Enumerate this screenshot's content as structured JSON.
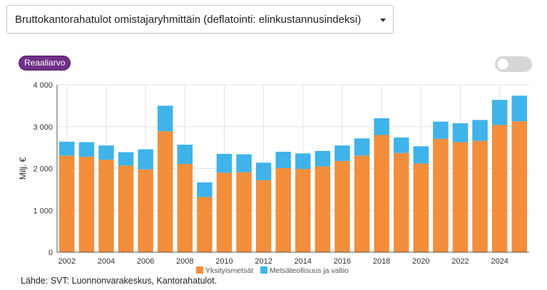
{
  "dropdown": {
    "selected": "Bruttokantorahatulot omistajaryhmittäin (deflatointi: elinkustannusindeksi)"
  },
  "badge": {
    "label": "Reaaliarvo"
  },
  "toggle": {
    "on": false
  },
  "source": "Lähde: SVT: Luonnonvarakeskus, Kantorahatulot.",
  "colors": {
    "series1": "#f28e3c",
    "series2": "#3fb3ea",
    "badge": "#6f2f86"
  },
  "chart_data": {
    "type": "bar",
    "stacked": true,
    "categories": [
      "2002",
      "2003",
      "2004",
      "2005",
      "2006",
      "2007",
      "2008",
      "2009",
      "2010",
      "2011",
      "2012",
      "2013",
      "2014",
      "2015",
      "2016",
      "2017",
      "2018",
      "2019",
      "2020",
      "2021",
      "2022",
      "2023",
      "2024",
      "2025"
    ],
    "x_tick_labels": [
      "2002",
      "2004",
      "2006",
      "2008",
      "2010",
      "2012",
      "2014",
      "2016",
      "2018",
      "2020",
      "2022",
      "2024"
    ],
    "series": [
      {
        "name": "Yksityismetsät",
        "color": "#f28e3c",
        "values": [
          2310,
          2280,
          2210,
          2070,
          1980,
          2890,
          2110,
          1320,
          1900,
          1910,
          1720,
          2010,
          1990,
          2050,
          2180,
          2310,
          2800,
          2370,
          2120,
          2710,
          2630,
          2660,
          3040,
          3130
        ]
      },
      {
        "name": "Metsäteollisuus ja valtio",
        "color": "#3fb3ea",
        "values": [
          330,
          350,
          340,
          320,
          480,
          610,
          460,
          350,
          450,
          430,
          420,
          390,
          370,
          370,
          370,
          410,
          400,
          370,
          410,
          410,
          450,
          500,
          600,
          610
        ]
      }
    ],
    "xlabel": "",
    "ylabel": "Milj. €",
    "ylim": [
      0,
      4000
    ],
    "y_ticks": [
      0,
      1000,
      2000,
      3000,
      4000
    ],
    "y_tick_labels": [
      "0",
      "1 000",
      "2 000",
      "3 000",
      "4 000"
    ],
    "grid": true,
    "legend_position": "bottom-center"
  }
}
